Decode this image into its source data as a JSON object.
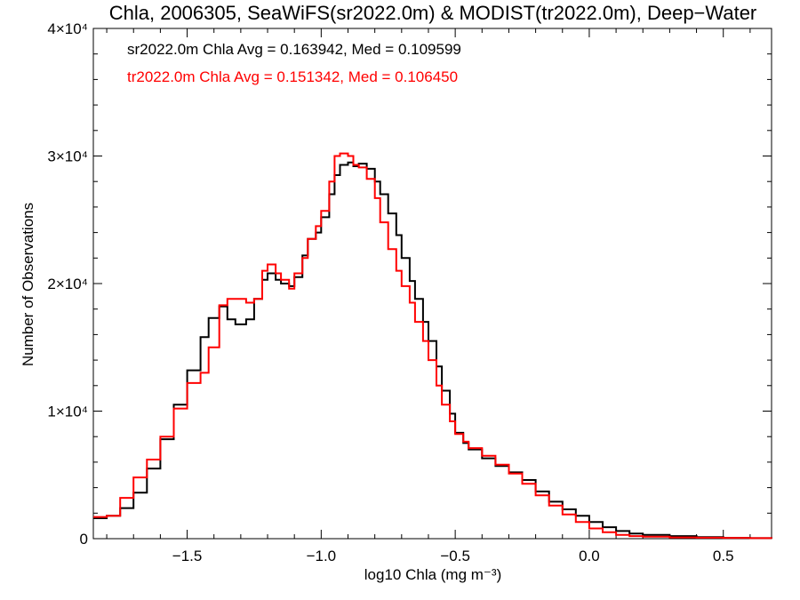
{
  "chart_data": {
    "type": "line",
    "title": "Chla, 2006305, SeaWiFS(sr2022.0m) & MODIST(tr2022.0m), Deep−Water",
    "xlabel": "log10 Chla (mg m⁻³)",
    "ylabel": "Number of Observations",
    "xlim": [
      -1.85,
      0.68
    ],
    "ylim": [
      0,
      40000
    ],
    "x_ticks": [
      -1.5,
      -1.0,
      -0.5,
      0.0,
      0.5
    ],
    "x_tick_labels": [
      "−1.5",
      "−1.0",
      "−0.5",
      "0.0",
      "0.5"
    ],
    "y_ticks": [
      0,
      10000,
      20000,
      30000,
      40000
    ],
    "y_tick_labels": [
      "0",
      "1×10⁴",
      "2×10⁴",
      "3×10⁴",
      "4×10⁴"
    ],
    "grid": false,
    "step": true,
    "series": [
      {
        "name": "sr2022.0m Chla Avg = 0.163942, Med = 0.109599",
        "color": "#000000",
        "points": [
          [
            -1.85,
            1600
          ],
          [
            -1.8,
            1800
          ],
          [
            -1.75,
            2400
          ],
          [
            -1.7,
            3600
          ],
          [
            -1.65,
            5500
          ],
          [
            -1.6,
            7800
          ],
          [
            -1.55,
            10500
          ],
          [
            -1.5,
            13200
          ],
          [
            -1.45,
            15800
          ],
          [
            -1.42,
            17300
          ],
          [
            -1.38,
            18200
          ],
          [
            -1.35,
            17200
          ],
          [
            -1.32,
            16800
          ],
          [
            -1.28,
            17200
          ],
          [
            -1.25,
            18800
          ],
          [
            -1.22,
            20300
          ],
          [
            -1.2,
            20800
          ],
          [
            -1.17,
            20300
          ],
          [
            -1.15,
            20000
          ],
          [
            -1.12,
            19800
          ],
          [
            -1.1,
            20500
          ],
          [
            -1.07,
            22200
          ],
          [
            -1.05,
            23500
          ],
          [
            -1.02,
            24000
          ],
          [
            -1.0,
            25200
          ],
          [
            -0.97,
            27000
          ],
          [
            -0.95,
            28500
          ],
          [
            -0.93,
            29300
          ],
          [
            -0.9,
            29500
          ],
          [
            -0.88,
            29200
          ],
          [
            -0.86,
            29400
          ],
          [
            -0.83,
            29000
          ],
          [
            -0.8,
            28000
          ],
          [
            -0.78,
            27000
          ],
          [
            -0.75,
            25500
          ],
          [
            -0.72,
            23800
          ],
          [
            -0.7,
            22000
          ],
          [
            -0.67,
            20200
          ],
          [
            -0.65,
            18800
          ],
          [
            -0.62,
            17000
          ],
          [
            -0.6,
            15500
          ],
          [
            -0.57,
            13500
          ],
          [
            -0.55,
            11600
          ],
          [
            -0.52,
            9800
          ],
          [
            -0.5,
            8300
          ],
          [
            -0.47,
            7500
          ],
          [
            -0.45,
            7000
          ],
          [
            -0.4,
            6300
          ],
          [
            -0.35,
            5700
          ],
          [
            -0.3,
            5200
          ],
          [
            -0.25,
            4600
          ],
          [
            -0.2,
            3700
          ],
          [
            -0.15,
            2900
          ],
          [
            -0.1,
            2300
          ],
          [
            -0.05,
            1800
          ],
          [
            0.0,
            1300
          ],
          [
            0.05,
            900
          ],
          [
            0.1,
            600
          ],
          [
            0.15,
            400
          ],
          [
            0.2,
            300
          ],
          [
            0.3,
            200
          ],
          [
            0.4,
            120
          ],
          [
            0.5,
            70
          ],
          [
            0.6,
            40
          ],
          [
            0.68,
            20
          ]
        ]
      },
      {
        "name": "tr2022.0m Chla Avg = 0.151342, Med = 0.106450",
        "color": "#ff0000",
        "points": [
          [
            -1.85,
            1700
          ],
          [
            -1.8,
            1800
          ],
          [
            -1.75,
            3200
          ],
          [
            -1.7,
            4800
          ],
          [
            -1.65,
            6200
          ],
          [
            -1.6,
            8000
          ],
          [
            -1.55,
            10200
          ],
          [
            -1.5,
            12200
          ],
          [
            -1.45,
            13000
          ],
          [
            -1.42,
            15000
          ],
          [
            -1.38,
            18300
          ],
          [
            -1.35,
            18800
          ],
          [
            -1.32,
            18800
          ],
          [
            -1.28,
            18500
          ],
          [
            -1.25,
            18800
          ],
          [
            -1.22,
            21000
          ],
          [
            -1.2,
            21500
          ],
          [
            -1.17,
            20800
          ],
          [
            -1.15,
            20300
          ],
          [
            -1.12,
            19600
          ],
          [
            -1.1,
            20800
          ],
          [
            -1.07,
            22000
          ],
          [
            -1.05,
            23500
          ],
          [
            -1.02,
            24500
          ],
          [
            -1.0,
            25700
          ],
          [
            -0.97,
            28000
          ],
          [
            -0.95,
            30000
          ],
          [
            -0.93,
            30200
          ],
          [
            -0.9,
            30000
          ],
          [
            -0.88,
            29300
          ],
          [
            -0.86,
            29100
          ],
          [
            -0.83,
            28200
          ],
          [
            -0.8,
            26700
          ],
          [
            -0.78,
            24800
          ],
          [
            -0.75,
            22700
          ],
          [
            -0.72,
            21000
          ],
          [
            -0.7,
            19800
          ],
          [
            -0.67,
            18500
          ],
          [
            -0.65,
            17000
          ],
          [
            -0.62,
            15500
          ],
          [
            -0.6,
            14000
          ],
          [
            -0.57,
            12000
          ],
          [
            -0.55,
            10500
          ],
          [
            -0.52,
            9200
          ],
          [
            -0.5,
            8200
          ],
          [
            -0.47,
            7600
          ],
          [
            -0.45,
            7100
          ],
          [
            -0.4,
            6500
          ],
          [
            -0.35,
            5800
          ],
          [
            -0.3,
            5100
          ],
          [
            -0.25,
            4300
          ],
          [
            -0.2,
            3400
          ],
          [
            -0.15,
            2600
          ],
          [
            -0.1,
            1900
          ],
          [
            -0.05,
            1300
          ],
          [
            0.0,
            800
          ],
          [
            0.05,
            500
          ],
          [
            0.1,
            300
          ],
          [
            0.15,
            200
          ],
          [
            0.2,
            150
          ],
          [
            0.3,
            100
          ],
          [
            0.4,
            80
          ],
          [
            0.5,
            60
          ],
          [
            0.6,
            40
          ],
          [
            0.68,
            20
          ]
        ]
      }
    ]
  }
}
